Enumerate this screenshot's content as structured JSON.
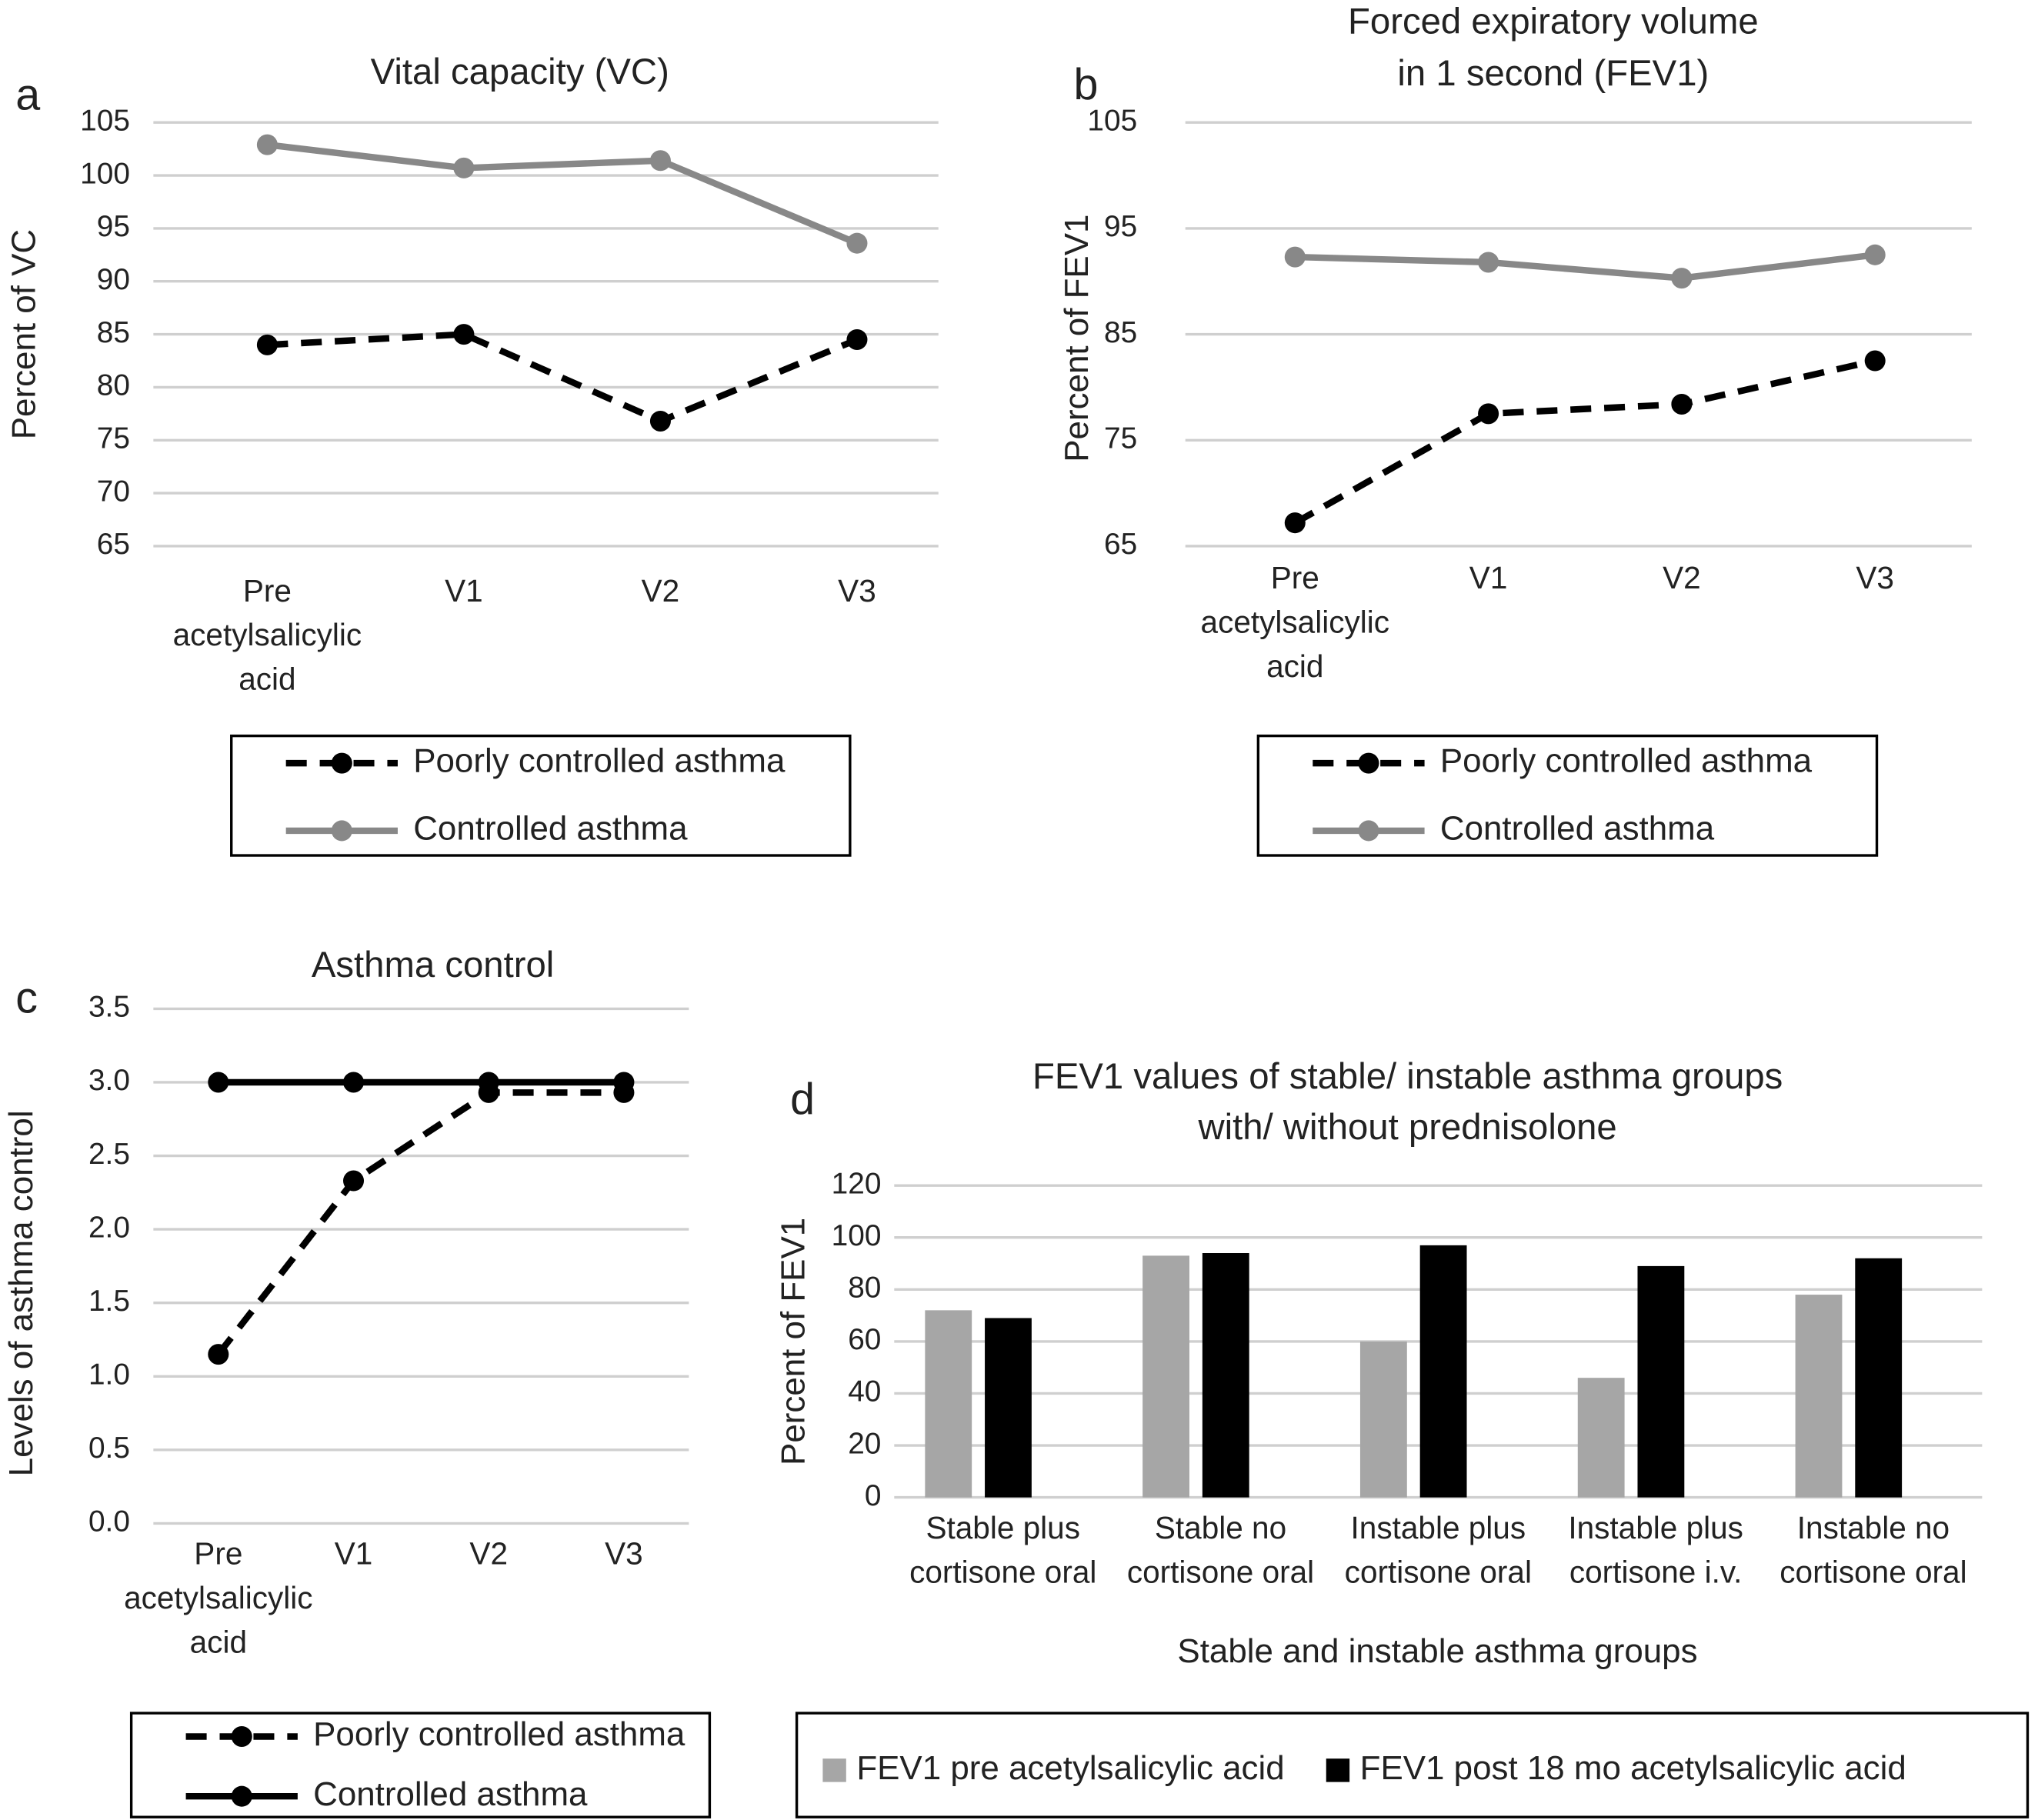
{
  "chart_data": [
    {
      "type": "line",
      "label": "a",
      "title": [
        "Vital capacity (VC)"
      ],
      "ylabel": "Percent of VC",
      "categories": [
        "Pre acetylsalicylic acid",
        "V1",
        "V2",
        "V3"
      ],
      "series": [
        {
          "name": "Poorly controlled asthma",
          "color": "#000000",
          "dashed": true,
          "values": [
            84,
            85,
            76.8,
            84.5
          ]
        },
        {
          "name": "Controlled asthma",
          "color": "#888888",
          "dashed": false,
          "values": [
            102.9,
            100.7,
            101.4,
            93.6
          ]
        }
      ],
      "ylim": [
        65,
        105
      ],
      "yticks": [
        65,
        70,
        75,
        80,
        85,
        90,
        95,
        100,
        105
      ],
      "grid": true,
      "legend": "bottom"
    },
    {
      "type": "line",
      "label": "b",
      "title": [
        "Forced expiratory volume",
        "in 1 second (FEV1)"
      ],
      "ylabel": "Percent of FEV1",
      "categories": [
        "Pre acetylsalicylic acid",
        "V1",
        "V2",
        "V3"
      ],
      "series": [
        {
          "name": "Poorly controlled asthma",
          "color": "#000000",
          "dashed": true,
          "values": [
            67.2,
            77.5,
            78.4,
            82.5
          ]
        },
        {
          "name": "Controlled asthma",
          "color": "#888888",
          "dashed": false,
          "values": [
            92.3,
            91.8,
            90.3,
            92.5
          ]
        }
      ],
      "ylim": [
        65,
        105
      ],
      "yticks": [
        65,
        75,
        85,
        95,
        105
      ],
      "grid": true,
      "legend": "bottom"
    },
    {
      "type": "line",
      "label": "c",
      "title": [
        "Asthma control"
      ],
      "ylabel": "Levels of asthma control",
      "categories": [
        "Pre acetylsalicylic acid",
        "V1",
        "V2",
        "V3"
      ],
      "series": [
        {
          "name": "Poorly controlled asthma",
          "color": "#000000",
          "dashed": true,
          "values": [
            1.15,
            2.33,
            2.93,
            2.93
          ]
        },
        {
          "name": "Controlled asthma",
          "color": "#000000",
          "dashed": false,
          "values": [
            3,
            3,
            3,
            3
          ]
        }
      ],
      "ylim": [
        0,
        3.5
      ],
      "yticks": [
        {
          "value": 0,
          "label": "0.0"
        },
        0.5,
        {
          "value": 1,
          "label": "1.0"
        },
        1.5,
        {
          "value": 2,
          "label": "2.0"
        },
        2.5,
        {
          "value": 3,
          "label": "3.0"
        },
        3.5
      ],
      "grid": true,
      "legend": "bottom"
    },
    {
      "type": "bar",
      "label": "d",
      "title": [
        "FEV1 values of stable/ instable asthma groups",
        "with/ without prednisolone"
      ],
      "ylabel": "Percent of FEV1",
      "xlabel": "Stable and instable asthma groups",
      "categories": [
        "Stable plus cortisone oral",
        "Stable no cortisone oral",
        "Instable plus cortisone oral",
        "Instable plus cortisone i.v.",
        "Instable no cortisone oral"
      ],
      "series": [
        {
          "name": "FEV1 pre acetylsalicylic acid",
          "color": "#a6a6a6",
          "values": [
            72,
            93,
            60,
            46,
            78
          ]
        },
        {
          "name": "FEV1 post 18 mo acetylsalicylic acid",
          "color": "#000000",
          "values": [
            69,
            94,
            97,
            89,
            92
          ]
        }
      ],
      "ylim": [
        0,
        120
      ],
      "yticks": [
        0,
        20,
        40,
        60,
        80,
        100,
        120
      ],
      "grid": true,
      "legend": "bottom"
    }
  ]
}
